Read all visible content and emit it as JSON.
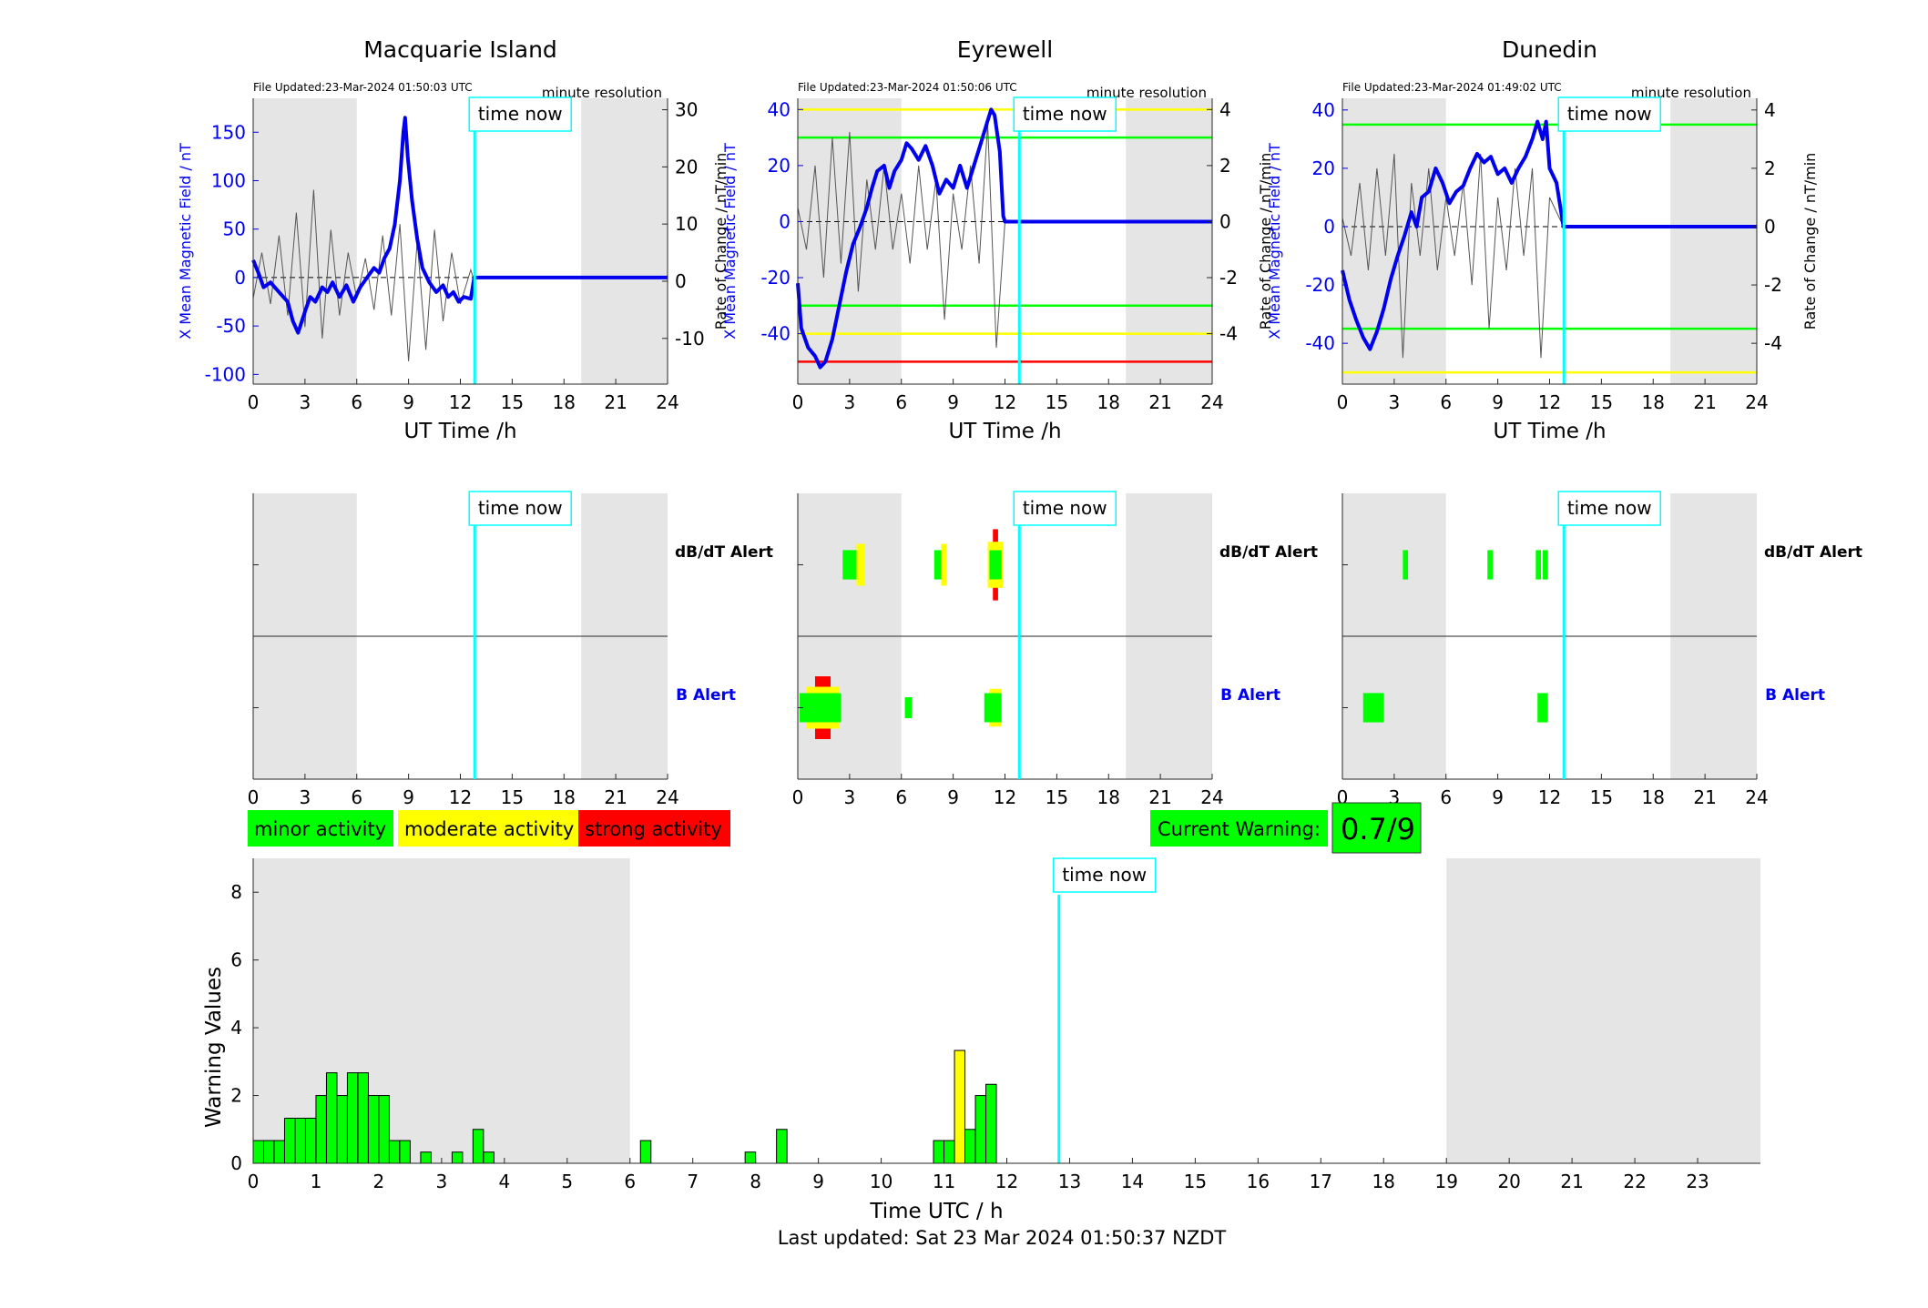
{
  "colors": {
    "field": "#0000ee",
    "rate": "#555555",
    "now_line": "#00ffff",
    "night": "#e5e5e5",
    "minor": "#00ff00",
    "moderate": "#ffff00",
    "strong": "#ff0000"
  },
  "legend": {
    "minor": "minor activity",
    "moderate": "moderate activity",
    "strong": "strong activity"
  },
  "current_warning": {
    "label": "Current Warning:",
    "value": "0.7/9"
  },
  "time_now_label": "time now",
  "now_hour": 12.83,
  "night_ranges": [
    [
      0,
      6
    ],
    [
      19,
      24
    ]
  ],
  "last_updated": "Last updated: Sat 23 Mar 2024 01:50:37 NZDT",
  "station_xticks": [
    "0",
    "3",
    "6",
    "9",
    "12",
    "15",
    "18",
    "21",
    "24"
  ],
  "alert_labels": {
    "dbdt": "dB/dT Alert",
    "b": "B Alert"
  },
  "stations": [
    {
      "title": "Macquarie Island",
      "file_updated": "File Updated:23-Mar-2024 01:50:03 UTC",
      "resolution": "minute resolution",
      "xlabel": "UT Time /h",
      "ylabel_left": "X Mean Magnetic Field / nT",
      "ylabel_right": "Rate of Change / nT/min",
      "ylim": [
        -110,
        185
      ],
      "yticks": [
        "-100",
        "-50",
        "0",
        "50",
        "100",
        "150"
      ],
      "yticks_values": [
        -100,
        -50,
        0,
        50,
        100,
        150
      ],
      "rlim": [
        -18,
        32
      ],
      "rticks": [
        "-10",
        "0",
        "10",
        "20",
        "30"
      ],
      "rticks_values": [
        -10,
        0,
        10,
        20,
        30
      ],
      "thresholds": [],
      "field_points": [
        [
          0,
          18
        ],
        [
          0.3,
          5
        ],
        [
          0.6,
          -10
        ],
        [
          1,
          -5
        ],
        [
          1.5,
          -15
        ],
        [
          2,
          -25
        ],
        [
          2.3,
          -45
        ],
        [
          2.6,
          -57
        ],
        [
          3,
          -35
        ],
        [
          3.3,
          -20
        ],
        [
          3.6,
          -25
        ],
        [
          4,
          -10
        ],
        [
          4.3,
          -15
        ],
        [
          4.6,
          -5
        ],
        [
          5,
          -20
        ],
        [
          5.4,
          -8
        ],
        [
          5.8,
          -25
        ],
        [
          6.2,
          -10
        ],
        [
          6.6,
          0
        ],
        [
          7,
          10
        ],
        [
          7.3,
          5
        ],
        [
          7.6,
          20
        ],
        [
          7.9,
          30
        ],
        [
          8.2,
          55
        ],
        [
          8.5,
          100
        ],
        [
          8.7,
          150
        ],
        [
          8.8,
          165
        ],
        [
          8.95,
          125
        ],
        [
          9.2,
          80
        ],
        [
          9.5,
          40
        ],
        [
          9.8,
          10
        ],
        [
          10.2,
          -5
        ],
        [
          10.6,
          -15
        ],
        [
          11,
          -8
        ],
        [
          11.3,
          -20
        ],
        [
          11.6,
          -15
        ],
        [
          11.9,
          -25
        ],
        [
          12.2,
          -20
        ],
        [
          12.6,
          -22
        ],
        [
          12.8,
          0
        ],
        [
          24,
          0
        ]
      ],
      "rate_points": [
        [
          0,
          -3
        ],
        [
          0.5,
          5
        ],
        [
          1,
          -4
        ],
        [
          1.5,
          8
        ],
        [
          2,
          -6
        ],
        [
          2.5,
          12
        ],
        [
          3,
          -8
        ],
        [
          3.5,
          16
        ],
        [
          4,
          -10
        ],
        [
          4.5,
          9
        ],
        [
          5,
          -6
        ],
        [
          5.5,
          5
        ],
        [
          6,
          -3
        ],
        [
          6.5,
          4
        ],
        [
          7,
          -5
        ],
        [
          7.5,
          8
        ],
        [
          8,
          -6
        ],
        [
          8.5,
          10
        ],
        [
          9,
          -14
        ],
        [
          9.5,
          7
        ],
        [
          10,
          -12
        ],
        [
          10.5,
          9
        ],
        [
          11,
          -7
        ],
        [
          11.5,
          5
        ],
        [
          12,
          -4
        ],
        [
          12.6,
          2
        ],
        [
          12.8,
          0
        ]
      ],
      "dbdt_blocks": [],
      "b_blocks": []
    },
    {
      "title": "Eyrewell",
      "file_updated": "File Updated:23-Mar-2024 01:50:06 UTC",
      "resolution": "minute resolution",
      "xlabel": "UT Time /h",
      "ylabel_left": "X Mean Magnetic Field / nT",
      "ylabel_right": "Rate of Change / nT/min",
      "ylim": [
        -58,
        44
      ],
      "yticks": [
        "-40",
        "-20",
        "0",
        "20",
        "40"
      ],
      "yticks_values": [
        -40,
        -20,
        0,
        20,
        40
      ],
      "rlim": [
        -5.8,
        4.4
      ],
      "rticks": [
        "-4",
        "-2",
        "0",
        "2",
        "4"
      ],
      "rticks_values": [
        -4,
        -2,
        0,
        2,
        4
      ],
      "thresholds": [
        {
          "value": 40,
          "level": "moderate"
        },
        {
          "value": 30,
          "level": "minor"
        },
        {
          "value": -30,
          "level": "minor"
        },
        {
          "value": -40,
          "level": "moderate"
        },
        {
          "value": -50,
          "level": "strong"
        }
      ],
      "field_points": [
        [
          0,
          -22
        ],
        [
          0.2,
          -38
        ],
        [
          0.6,
          -45
        ],
        [
          1,
          -48
        ],
        [
          1.3,
          -52
        ],
        [
          1.6,
          -50
        ],
        [
          2,
          -42
        ],
        [
          2.4,
          -30
        ],
        [
          2.8,
          -18
        ],
        [
          3.2,
          -8
        ],
        [
          3.6,
          -2
        ],
        [
          4,
          5
        ],
        [
          4.3,
          12
        ],
        [
          4.6,
          18
        ],
        [
          5,
          20
        ],
        [
          5.3,
          12
        ],
        [
          5.6,
          18
        ],
        [
          6,
          22
        ],
        [
          6.3,
          28
        ],
        [
          6.6,
          26
        ],
        [
          7,
          22
        ],
        [
          7.4,
          27
        ],
        [
          7.8,
          20
        ],
        [
          8.2,
          10
        ],
        [
          8.6,
          15
        ],
        [
          9,
          12
        ],
        [
          9.4,
          20
        ],
        [
          9.8,
          12
        ],
        [
          10.2,
          20
        ],
        [
          10.6,
          28
        ],
        [
          11,
          36
        ],
        [
          11.2,
          40
        ],
        [
          11.4,
          38
        ],
        [
          11.7,
          25
        ],
        [
          11.9,
          2
        ],
        [
          12,
          0
        ],
        [
          24,
          0
        ]
      ],
      "rate_points": [
        [
          0,
          0.5
        ],
        [
          0.5,
          -1
        ],
        [
          1,
          2
        ],
        [
          1.5,
          -2
        ],
        [
          2,
          3
        ],
        [
          2.5,
          -1.5
        ],
        [
          3,
          3.2
        ],
        [
          3.5,
          -2.5
        ],
        [
          4,
          1.5
        ],
        [
          4.5,
          -1
        ],
        [
          5,
          2
        ],
        [
          5.5,
          -1
        ],
        [
          6,
          1
        ],
        [
          6.5,
          -1.5
        ],
        [
          7,
          2
        ],
        [
          7.5,
          -1
        ],
        [
          8,
          1.5
        ],
        [
          8.5,
          -3.5
        ],
        [
          9,
          1
        ],
        [
          9.5,
          -1
        ],
        [
          10,
          2
        ],
        [
          10.5,
          -1.5
        ],
        [
          11,
          3.5
        ],
        [
          11.5,
          -4.5
        ],
        [
          12,
          0
        ]
      ],
      "dbdt_blocks": [
        {
          "x0": 2.6,
          "x1": 3.4,
          "level": "minor",
          "h": 0.7
        },
        {
          "x0": 3.4,
          "x1": 3.9,
          "level": "moderate",
          "h": 1.0
        },
        {
          "x0": 7.9,
          "x1": 8.3,
          "level": "minor",
          "h": 0.7
        },
        {
          "x0": 8.3,
          "x1": 8.6,
          "level": "moderate",
          "h": 1.0
        },
        {
          "x0": 11.0,
          "x1": 11.1,
          "level": "moderate",
          "h": 1.1
        },
        {
          "x0": 11.3,
          "x1": 11.6,
          "level": "strong",
          "h": 1.7
        },
        {
          "x0": 11.1,
          "x1": 11.9,
          "level": "moderate",
          "h": 1.1
        }
      ],
      "b_blocks": [
        {
          "x0": 1.0,
          "x1": 1.9,
          "level": "strong",
          "h": 1.5
        },
        {
          "x0": 0.5,
          "x1": 2.4,
          "level": "moderate",
          "h": 1.0
        },
        {
          "x0": 6.2,
          "x1": 6.6,
          "level": "minor",
          "h": 0.5
        },
        {
          "x0": 11.1,
          "x1": 11.8,
          "level": "moderate",
          "h": 0.9
        }
      ]
    },
    {
      "title": "Dunedin",
      "file_updated": "File Updated:23-Mar-2024 01:49:02 UTC",
      "resolution": "minute resolution",
      "xlabel": "UT Time /h",
      "ylabel_left": "X Mean Magnetic Field / nT",
      "ylabel_right": "Rate of Change / nT/min",
      "ylim": [
        -54,
        44
      ],
      "yticks": [
        "-40",
        "-20",
        "0",
        "20",
        "40"
      ],
      "yticks_values": [
        -40,
        -20,
        0,
        20,
        40
      ],
      "rlim": [
        -5.4,
        4.4
      ],
      "rticks": [
        "-4",
        "-2",
        "0",
        "2",
        "4"
      ],
      "rticks_values": [
        -4,
        -2,
        0,
        2,
        4
      ],
      "thresholds": [
        {
          "value": 35,
          "level": "minor"
        },
        {
          "value": -35,
          "level": "minor"
        },
        {
          "value": -50,
          "level": "moderate"
        }
      ],
      "field_points": [
        [
          0,
          -15
        ],
        [
          0.4,
          -25
        ],
        [
          0.8,
          -32
        ],
        [
          1.2,
          -38
        ],
        [
          1.6,
          -42
        ],
        [
          2,
          -36
        ],
        [
          2.4,
          -28
        ],
        [
          2.8,
          -18
        ],
        [
          3.2,
          -10
        ],
        [
          3.6,
          -3
        ],
        [
          4,
          5
        ],
        [
          4.3,
          0
        ],
        [
          4.6,
          10
        ],
        [
          5,
          12
        ],
        [
          5.4,
          20
        ],
        [
          5.8,
          15
        ],
        [
          6.2,
          8
        ],
        [
          6.6,
          12
        ],
        [
          7,
          14
        ],
        [
          7.4,
          20
        ],
        [
          7.8,
          25
        ],
        [
          8.2,
          22
        ],
        [
          8.6,
          24
        ],
        [
          9,
          18
        ],
        [
          9.4,
          20
        ],
        [
          9.8,
          15
        ],
        [
          10.2,
          20
        ],
        [
          10.6,
          24
        ],
        [
          11,
          30
        ],
        [
          11.3,
          36
        ],
        [
          11.6,
          30
        ],
        [
          11.8,
          36
        ],
        [
          12,
          20
        ],
        [
          12.4,
          15
        ],
        [
          12.8,
          0
        ],
        [
          24,
          0
        ]
      ],
      "rate_points": [
        [
          0,
          0.3
        ],
        [
          0.5,
          -1
        ],
        [
          1,
          1.5
        ],
        [
          1.5,
          -1.5
        ],
        [
          2,
          2
        ],
        [
          2.5,
          -1
        ],
        [
          3,
          2.5
        ],
        [
          3.5,
          -4.5
        ],
        [
          4,
          1.5
        ],
        [
          4.5,
          -1
        ],
        [
          5,
          2
        ],
        [
          5.5,
          -1.5
        ],
        [
          6,
          1
        ],
        [
          6.5,
          -1
        ],
        [
          7,
          1.5
        ],
        [
          7.5,
          -2
        ],
        [
          8,
          2.5
        ],
        [
          8.5,
          -3.5
        ],
        [
          9,
          1
        ],
        [
          9.5,
          -1.5
        ],
        [
          10,
          2
        ],
        [
          10.5,
          -1
        ],
        [
          11,
          2
        ],
        [
          11.5,
          -4.5
        ],
        [
          12,
          1
        ],
        [
          12.8,
          0
        ]
      ],
      "dbdt_blocks": [
        {
          "x0": 3.5,
          "x1": 3.8,
          "level": "minor",
          "h": 0.7
        },
        {
          "x0": 8.4,
          "x1": 8.7,
          "level": "minor",
          "h": 0.7
        },
        {
          "x0": 11.2,
          "x1": 11.5,
          "level": "minor",
          "h": 0.7
        },
        {
          "x0": 11.6,
          "x1": 11.9,
          "level": "minor",
          "h": 0.7
        }
      ],
      "b_blocks": [
        {
          "x0": 1.2,
          "x1": 2.4,
          "level": "minor",
          "h": 0.7
        },
        {
          "x0": 11.3,
          "x1": 11.9,
          "level": "minor",
          "h": 0.7
        }
      ]
    }
  ],
  "chart_data": {
    "type": "bar",
    "xlabel": "Time UTC / h",
    "ylabel": "Warning Values",
    "xlim": [
      0,
      24
    ],
    "ylim": [
      0,
      9
    ],
    "xticks": [
      "0",
      "1",
      "2",
      "3",
      "4",
      "5",
      "6",
      "7",
      "8",
      "9",
      "10",
      "11",
      "12",
      "13",
      "14",
      "15",
      "16",
      "17",
      "18",
      "19",
      "20",
      "21",
      "22",
      "23"
    ],
    "yticks": [
      "0",
      "2",
      "4",
      "6",
      "8"
    ],
    "yticks_values": [
      0,
      2,
      4,
      6,
      8
    ],
    "bar_width_h": 0.1667,
    "bars": [
      {
        "x": 0.0,
        "value": 0.67,
        "level": "minor"
      },
      {
        "x": 0.167,
        "value": 0.67,
        "level": "minor"
      },
      {
        "x": 0.333,
        "value": 0.67,
        "level": "minor"
      },
      {
        "x": 0.5,
        "value": 1.33,
        "level": "minor"
      },
      {
        "x": 0.667,
        "value": 1.33,
        "level": "minor"
      },
      {
        "x": 0.833,
        "value": 1.33,
        "level": "minor"
      },
      {
        "x": 1.0,
        "value": 2.0,
        "level": "minor"
      },
      {
        "x": 1.167,
        "value": 2.67,
        "level": "minor"
      },
      {
        "x": 1.333,
        "value": 2.0,
        "level": "minor"
      },
      {
        "x": 1.5,
        "value": 2.67,
        "level": "minor"
      },
      {
        "x": 1.667,
        "value": 2.67,
        "level": "minor"
      },
      {
        "x": 1.833,
        "value": 2.0,
        "level": "minor"
      },
      {
        "x": 2.0,
        "value": 2.0,
        "level": "minor"
      },
      {
        "x": 2.167,
        "value": 0.67,
        "level": "minor"
      },
      {
        "x": 2.333,
        "value": 0.67,
        "level": "minor"
      },
      {
        "x": 2.667,
        "value": 0.33,
        "level": "minor"
      },
      {
        "x": 3.167,
        "value": 0.33,
        "level": "minor"
      },
      {
        "x": 3.5,
        "value": 1.0,
        "level": "minor"
      },
      {
        "x": 3.667,
        "value": 0.33,
        "level": "minor"
      },
      {
        "x": 6.167,
        "value": 0.67,
        "level": "minor"
      },
      {
        "x": 7.833,
        "value": 0.33,
        "level": "minor"
      },
      {
        "x": 8.333,
        "value": 1.0,
        "level": "minor"
      },
      {
        "x": 10.833,
        "value": 0.67,
        "level": "minor"
      },
      {
        "x": 11.0,
        "value": 0.67,
        "level": "minor"
      },
      {
        "x": 11.167,
        "value": 3.33,
        "level": "moderate"
      },
      {
        "x": 11.333,
        "value": 1.0,
        "level": "minor"
      },
      {
        "x": 11.5,
        "value": 2.0,
        "level": "minor"
      },
      {
        "x": 11.667,
        "value": 2.33,
        "level": "minor"
      }
    ]
  }
}
